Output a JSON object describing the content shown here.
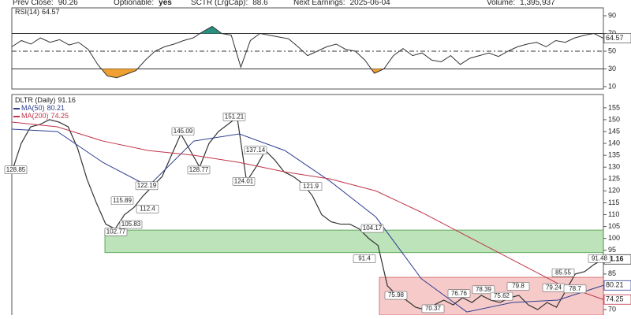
{
  "header": {
    "items": [
      {
        "label": "Prev Close:",
        "value": "90.26"
      },
      {
        "label": "Optionable:",
        "value": "yes"
      },
      {
        "label": "SCTR (LrgCap):",
        "value": "88.6"
      },
      {
        "label": "Next Earnings:",
        "value": "2025-06-04"
      },
      {
        "label": "Volume:",
        "value": "1,395,937"
      }
    ]
  },
  "chart_data": [
    {
      "type": "line",
      "name": "RSI(14)",
      "last_value": 64.57,
      "color": "#333333",
      "ylim": [
        7.3,
        98.9
      ],
      "yticks": [
        10,
        30,
        50,
        70,
        90
      ],
      "reference_lines": [
        70,
        50,
        30
      ],
      "overbought_color": "#2a8f7f",
      "oversold_color": "#f0a030",
      "values": [
        55,
        62,
        58,
        65,
        60,
        63,
        57,
        60,
        52,
        35,
        22,
        20,
        24,
        28,
        40,
        50,
        55,
        58,
        62,
        65,
        72,
        78,
        70,
        68,
        32,
        62,
        70,
        68,
        66,
        64,
        55,
        45,
        50,
        55,
        58,
        52,
        50,
        40,
        25,
        30,
        45,
        53,
        45,
        48,
        40,
        38,
        45,
        35,
        42,
        45,
        48,
        44,
        50,
        55,
        58,
        60,
        55,
        62,
        60,
        65,
        68,
        70,
        64.57
      ]
    },
    {
      "type": "line",
      "ylim": [
        67.7,
        160.6
      ],
      "yticks": [
        70,
        75,
        80,
        85,
        90,
        95,
        100,
        105,
        110,
        115,
        120,
        125,
        130,
        135,
        140,
        145,
        150,
        155
      ],
      "series": [
        {
          "name": "DLTR (Daily)",
          "last_value": 91.16,
          "color": "#333333",
          "values": [
            128,
            140,
            147,
            148,
            150,
            149,
            147,
            138,
            125,
            115,
            106,
            104,
            110,
            113,
            118,
            122,
            126,
            135,
            144,
            137,
            130,
            140,
            145,
            148,
            151,
            124,
            130,
            137,
            133,
            128,
            126,
            123,
            118,
            110,
            107,
            106,
            106,
            104,
            100,
            97,
            80,
            76,
            74,
            71,
            70,
            72,
            74,
            72,
            75,
            73,
            76,
            74,
            73,
            75,
            76,
            72,
            70,
            73,
            71,
            78,
            85,
            86,
            89,
            91.16
          ]
        },
        {
          "name": "MA(50)",
          "last_value": 80.21,
          "color": "#2f3f8f",
          "values": [
            146,
            145,
            132,
            122,
            141,
            144,
            137,
            124,
            109,
            83,
            69,
            73,
            74,
            80.21
          ]
        },
        {
          "name": "MA(200)",
          "last_value": 74.25,
          "color": "#c0354a",
          "values": [
            149,
            147,
            141,
            137,
            135,
            132,
            128,
            125,
            120,
            111,
            101,
            91,
            81,
            74.25
          ]
        }
      ],
      "zones": [
        {
          "ylim": [
            94,
            103.5
          ],
          "color": "#8fd08a"
        },
        {
          "ylim": [
            67.7,
            83.6
          ],
          "color": "#f2a6a6"
        }
      ],
      "annotations": [
        128.85,
        115.89,
        122.19,
        112.4,
        102.77,
        105.83,
        145.09,
        128.77,
        151.21,
        137.14,
        124.01,
        121.9,
        104.17,
        91.4,
        75.98,
        70.37,
        76.76,
        78.39,
        75.62,
        79.8,
        79.24,
        85.55,
        78.7,
        91.48
      ]
    }
  ]
}
